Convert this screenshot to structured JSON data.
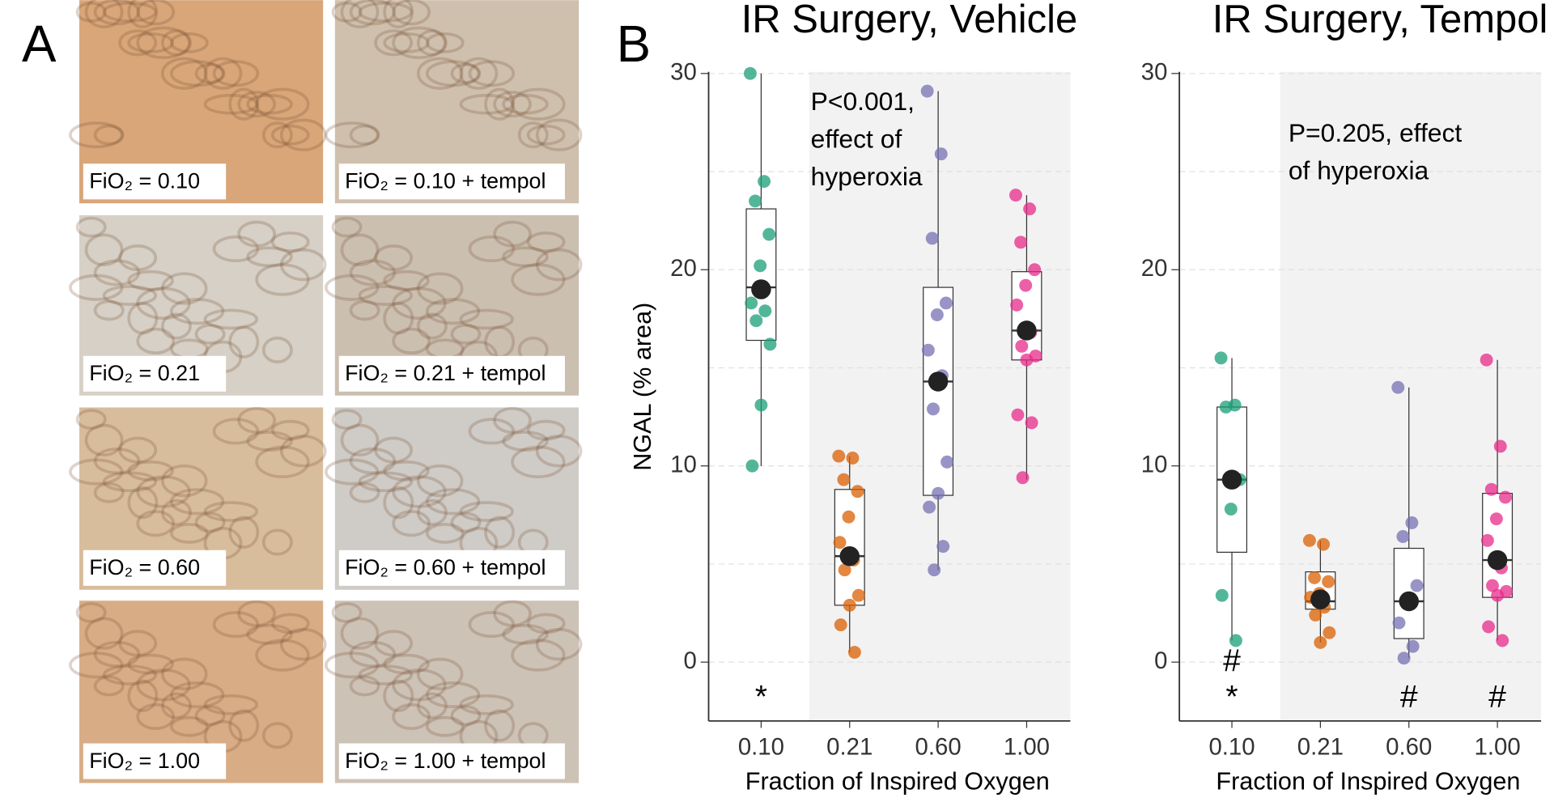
{
  "panel_labels": [
    "A",
    "B"
  ],
  "micrographs": [
    {
      "label": "FiO₂ = 0.10",
      "tone": "#d9a679"
    },
    {
      "label": "FiO₂ = 0.10 + tempol",
      "tone": "#cfc0ae"
    },
    {
      "label": "FiO₂ = 0.21",
      "tone": "#d6d0c6"
    },
    {
      "label": "FiO₂ = 0.21 + tempol",
      "tone": "#cbbfb0"
    },
    {
      "label": "FiO₂ = 0.60",
      "tone": "#d8bd9c"
    },
    {
      "label": "FiO₂ = 0.60 + tempol",
      "tone": "#cfcbc6"
    },
    {
      "label": "FiO₂ = 1.00",
      "tone": "#d8ad85"
    },
    {
      "label": "FiO₂ = 1.00 + tempol",
      "tone": "#cdc2b6"
    }
  ],
  "chart_data": [
    {
      "type": "box",
      "title": "IR Surgery, Vehicle",
      "y_label": "NGAL (% area)",
      "x_label": "Fraction of Inspired Oxygen",
      "categories": [
        "0.10",
        "0.21",
        "0.60",
        "1.00"
      ],
      "colors": [
        "#1b9e77",
        "#d95f02",
        "#7570b3",
        "#e7298a"
      ],
      "ylim": [
        -3,
        31.5
      ],
      "yticks": [
        0,
        10,
        20,
        30
      ],
      "grid_yticks": [
        5,
        15,
        25
      ],
      "shaded": [
        1,
        3
      ],
      "annotation": [
        "P<0.001,",
        "effect of",
        "hyperoxia"
      ],
      "significance": [
        [
          "*"
        ],
        [],
        [],
        []
      ],
      "boxes": [
        {
          "low": 10.0,
          "q1": 16.4,
          "median": 19.1,
          "q3": 23.1,
          "high": 30.0,
          "mean": 19.0,
          "points": [
            30.0,
            24.5,
            23.5,
            21.8,
            20.2,
            18.3,
            17.9,
            17.4,
            16.2,
            13.1,
            10.0
          ]
        },
        {
          "low": 0.5,
          "q1": 2.9,
          "median": 5.4,
          "q3": 8.8,
          "high": 10.5,
          "mean": 5.4,
          "points": [
            10.5,
            10.4,
            9.3,
            8.7,
            7.4,
            6.1,
            5.2,
            4.7,
            3.4,
            2.9,
            1.9,
            0.5
          ]
        },
        {
          "low": 4.7,
          "q1": 8.5,
          "median": 14.3,
          "q3": 19.1,
          "high": 29.1,
          "mean": 14.3,
          "points": [
            29.1,
            25.9,
            21.6,
            18.3,
            17.7,
            15.9,
            14.6,
            12.9,
            10.2,
            8.6,
            7.9,
            5.9,
            4.7
          ]
        },
        {
          "low": 9.3,
          "q1": 15.4,
          "median": 16.9,
          "q3": 19.9,
          "high": 23.8,
          "mean": 16.9,
          "points": [
            23.8,
            23.1,
            21.4,
            20.0,
            19.2,
            18.2,
            16.8,
            16.1,
            15.6,
            15.4,
            12.6,
            12.2,
            9.4
          ]
        }
      ]
    },
    {
      "type": "box",
      "title": "IR Surgery, Tempol",
      "x_label": "Fraction of Inspired Oxygen",
      "categories": [
        "0.10",
        "0.21",
        "0.60",
        "1.00"
      ],
      "colors": [
        "#1b9e77",
        "#d95f02",
        "#7570b3",
        "#e7298a"
      ],
      "ylim": [
        -3,
        31.5
      ],
      "yticks": [
        0,
        10,
        20,
        30
      ],
      "grid_yticks": [
        5,
        15,
        25
      ],
      "shaded": [
        1,
        3
      ],
      "annotation": [
        "P=0.205, effect",
        "of hyperoxia"
      ],
      "significance": [
        [
          "#",
          "*"
        ],
        [],
        [
          "#"
        ],
        [
          "#"
        ]
      ],
      "boxes": [
        {
          "low": 1.1,
          "q1": 5.6,
          "median": 9.3,
          "q3": 13.0,
          "high": 15.5,
          "mean": 9.3,
          "points": [
            15.5,
            13.1,
            13.0,
            9.3,
            7.8,
            3.4,
            1.1
          ]
        },
        {
          "low": 1.0,
          "q1": 2.7,
          "median": 3.1,
          "q3": 4.6,
          "high": 6.2,
          "mean": 3.2,
          "points": [
            6.2,
            6.0,
            4.3,
            4.1,
            3.5,
            3.3,
            2.8,
            2.4,
            1.5,
            1.0
          ]
        },
        {
          "low": 0.2,
          "q1": 1.2,
          "median": 3.1,
          "q3": 5.8,
          "high": 14.0,
          "mean": 3.1,
          "points": [
            14.0,
            7.1,
            6.4,
            3.9,
            3.2,
            2.0,
            0.8,
            0.2
          ]
        },
        {
          "low": 1.1,
          "q1": 3.3,
          "median": 5.2,
          "q3": 8.6,
          "high": 15.4,
          "mean": 5.2,
          "points": [
            15.4,
            11.0,
            8.8,
            8.4,
            7.3,
            6.2,
            4.8,
            3.9,
            3.6,
            3.4,
            1.8,
            1.1
          ]
        }
      ]
    }
  ]
}
